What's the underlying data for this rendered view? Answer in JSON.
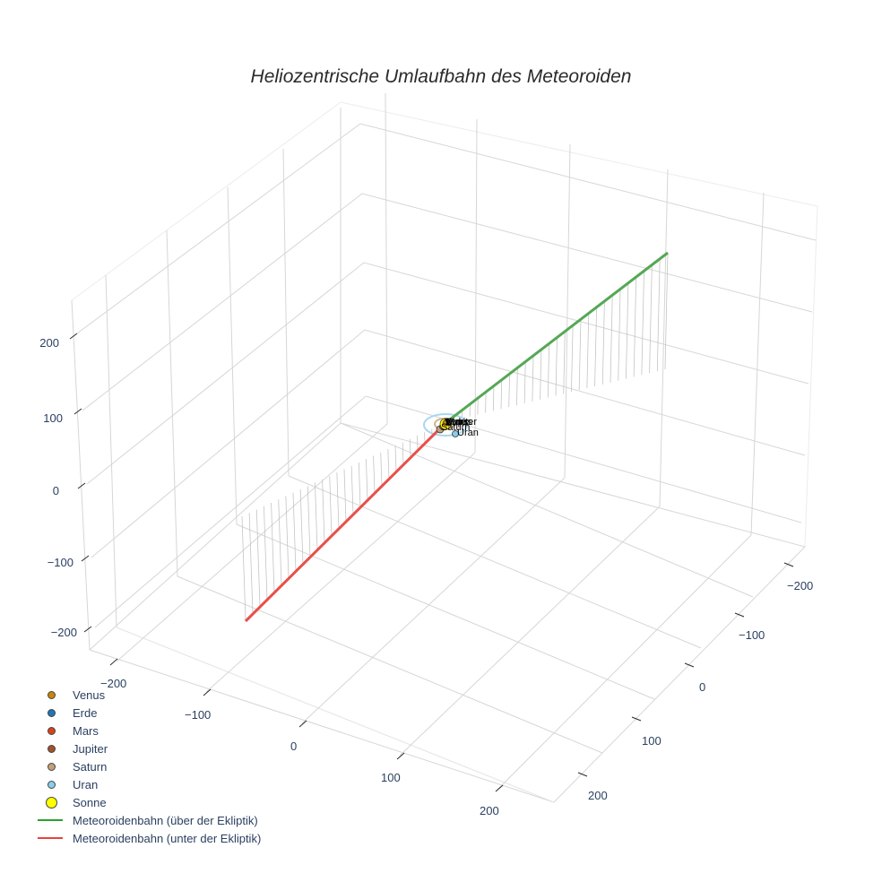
{
  "chart_data": {
    "type": "scatter3d",
    "title": "Heliozentrische Umlaufbahn des Meteoroiden",
    "axes": {
      "x": {
        "ticks": [
          -200,
          -100,
          0,
          100,
          200
        ],
        "range": [
          -250,
          250
        ]
      },
      "y": {
        "ticks": [
          -200,
          -100,
          0,
          100,
          200
        ],
        "range": [
          -250,
          250
        ]
      },
      "z": {
        "ticks": [
          -200,
          -100,
          0,
          100,
          200
        ],
        "range": [
          -250,
          250
        ]
      },
      "grid": true,
      "background": "#ffffff",
      "gridcolor": "#d9d9d9"
    },
    "series": [
      {
        "name": "Venus",
        "mode": "markers+text",
        "color": "#c8860d",
        "x": 0.7,
        "y": 0.1,
        "z": 0
      },
      {
        "name": "Erde",
        "mode": "markers+text",
        "color": "#1f77b4",
        "x": 1.0,
        "y": 0.0,
        "z": 0
      },
      {
        "name": "Mars",
        "mode": "markers+text",
        "color": "#d9421a",
        "x": 1.5,
        "y": 0.2,
        "z": 0
      },
      {
        "name": "Jupiter",
        "mode": "markers+text",
        "color": "#a0522d",
        "x": 5.2,
        "y": 0.5,
        "z": 0
      },
      {
        "name": "Saturn",
        "mode": "markers+text",
        "color": "#c4a07a",
        "x": 9.5,
        "y": 1.0,
        "z": 0
      },
      {
        "name": "Uran",
        "mode": "markers+text",
        "color": "#87ceeb",
        "x": 19.2,
        "y": 2.0,
        "z": 0
      },
      {
        "name": "Sonne",
        "mode": "markers",
        "color": "#ffff00",
        "x": 0,
        "y": 0,
        "z": 0
      },
      {
        "name": "Meteoroidenbahn (über der Ekliptik)",
        "mode": "lines",
        "color": "#2ca02c",
        "start": [
          0,
          0,
          0
        ],
        "end": [
          -230,
          -190,
          230
        ]
      },
      {
        "name": "Meteoroidenbahn (unter der Ekliptik)",
        "mode": "lines",
        "color": "#e8413d",
        "start": [
          0,
          0,
          0
        ],
        "end": [
          230,
          190,
          -230
        ]
      }
    ],
    "orbits": [
      "Saturn",
      "Uran"
    ],
    "drop_lines": {
      "color": "#bdbdbd",
      "count_per_branch": 28
    }
  },
  "title": "Heliozentrische Umlaufbahn des Meteoroiden",
  "axis_ticks": {
    "z": [
      "200",
      "100",
      "0",
      "−100",
      "−200"
    ],
    "x": [
      "−200",
      "−100",
      "0",
      "100",
      "200"
    ],
    "y": [
      "−200",
      "−100",
      "0",
      "100",
      "200"
    ]
  },
  "planet_labels": [
    "Venus",
    "Erde",
    "Mars",
    "Jupiter",
    "Saturn",
    "Uran"
  ],
  "legend": {
    "items": [
      {
        "label": "Venus",
        "type": "marker",
        "color": "#c8860d",
        "size": 9
      },
      {
        "label": "Erde",
        "type": "marker",
        "color": "#1f77b4",
        "size": 9
      },
      {
        "label": "Mars",
        "type": "marker",
        "color": "#d9421a",
        "size": 9
      },
      {
        "label": "Jupiter",
        "type": "marker",
        "color": "#a0522d",
        "size": 9
      },
      {
        "label": "Saturn",
        "type": "marker",
        "color": "#c4a07a",
        "size": 9
      },
      {
        "label": "Uran",
        "type": "marker",
        "color": "#87ceeb",
        "size": 9
      },
      {
        "label": "Sonne",
        "type": "marker",
        "color": "#ffff00",
        "size": 13
      },
      {
        "label": "Meteoroidenbahn (über der Ekliptik)",
        "type": "line",
        "color": "#2ca02c"
      },
      {
        "label": "Meteoroidenbahn (unter der Ekliptik)",
        "type": "line",
        "color": "#e8413d"
      }
    ]
  }
}
